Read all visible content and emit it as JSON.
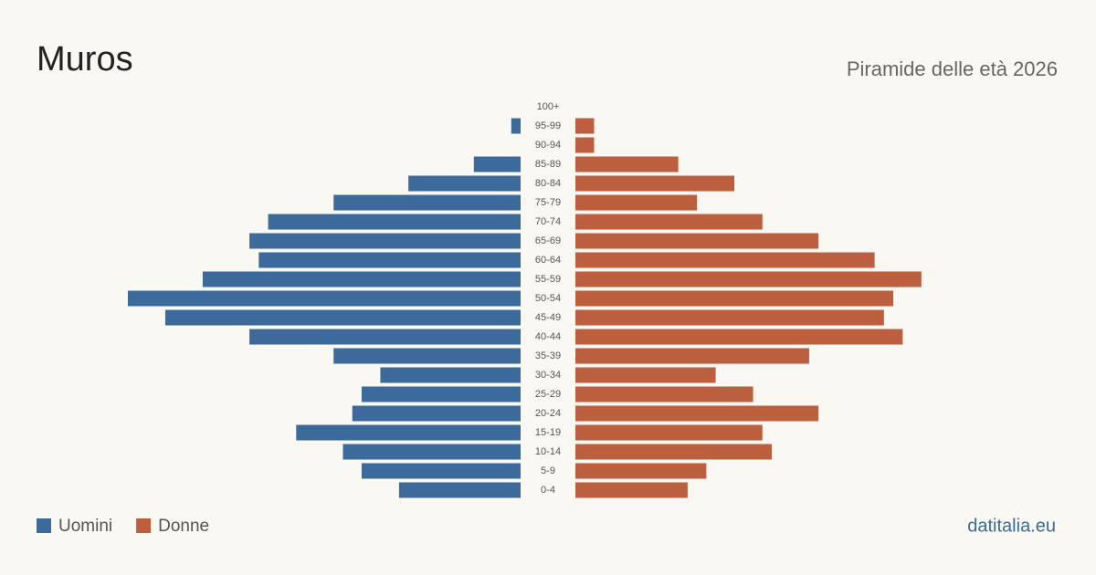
{
  "chart_data": {
    "type": "population-pyramid",
    "title": "Muros",
    "subtitle": "Piramide delle età 2026",
    "source": "datitalia.eu",
    "categories": [
      "100+",
      "95-99",
      "90-94",
      "85-89",
      "80-84",
      "75-79",
      "70-74",
      "65-69",
      "60-64",
      "55-59",
      "50-54",
      "45-49",
      "40-44",
      "35-39",
      "30-34",
      "25-29",
      "20-24",
      "15-19",
      "10-14",
      "5-9",
      "0-4"
    ],
    "series": [
      {
        "name": "Uomini",
        "color": "#3b6a9b",
        "values": [
          0,
          1,
          0,
          5,
          12,
          20,
          27,
          29,
          28,
          34,
          42,
          38,
          29,
          20,
          15,
          17,
          18,
          24,
          19,
          17,
          13
        ]
      },
      {
        "name": "Donne",
        "color": "#bb5f3e",
        "values": [
          0,
          2,
          2,
          11,
          17,
          13,
          20,
          26,
          32,
          37,
          34,
          33,
          35,
          25,
          15,
          19,
          26,
          20,
          21,
          14,
          12
        ]
      }
    ]
  }
}
